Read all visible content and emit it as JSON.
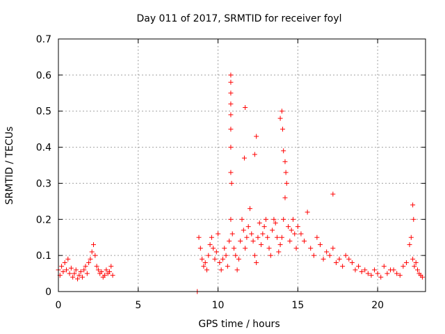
{
  "chart_data": {
    "type": "scatter",
    "title": "Day 011 of 2017, SRMTID for receiver foyl",
    "xlabel": "GPS time / hours",
    "ylabel": "SRMTID / TECUs",
    "xlim": [
      0,
      23
    ],
    "ylim": [
      0,
      0.7
    ],
    "xticks": [
      0,
      5,
      10,
      15,
      20
    ],
    "xtick_labels": [
      "0",
      "5",
      "10",
      "15",
      "20"
    ],
    "yticks": [
      0,
      0.1,
      0.2,
      0.3,
      0.4,
      0.5,
      0.6,
      0.7
    ],
    "ytick_labels": [
      "0",
      "0.1",
      "0.2",
      "0.3",
      "0.4",
      "0.5",
      "0.6",
      "0.7"
    ],
    "grid": true,
    "marker": "+",
    "marker_color": "#ff0000",
    "series": [
      {
        "name": "SRMTID",
        "x": [
          0.0,
          0.1,
          0.2,
          0.3,
          0.4,
          0.5,
          0.6,
          0.7,
          0.8,
          0.9,
          1.0,
          1.1,
          1.2,
          1.3,
          1.4,
          1.5,
          1.6,
          1.7,
          1.8,
          1.9,
          2.0,
          2.1,
          2.2,
          2.3,
          2.4,
          2.5,
          2.6,
          2.7,
          2.8,
          2.9,
          3.0,
          3.1,
          3.2,
          3.3,
          3.4,
          8.7,
          8.8,
          8.9,
          9.0,
          9.1,
          9.2,
          9.3,
          9.4,
          9.5,
          9.6,
          9.7,
          9.8,
          9.9,
          10.0,
          10.1,
          10.2,
          10.3,
          10.4,
          10.5,
          10.6,
          10.7,
          10.8,
          10.85,
          10.9,
          11.0,
          11.1,
          11.2,
          11.3,
          11.4,
          11.5,
          11.6,
          11.7,
          11.8,
          11.9,
          12.0,
          12.1,
          12.2,
          12.3,
          12.4,
          12.5,
          12.6,
          12.7,
          12.8,
          12.9,
          13.0,
          13.1,
          13.2,
          13.3,
          13.4,
          13.5,
          13.6,
          13.7,
          13.8,
          13.9,
          14.0,
          14.1,
          14.2,
          14.3,
          14.4,
          14.5,
          14.6,
          14.7,
          14.8,
          14.9,
          15.0,
          15.2,
          15.4,
          15.6,
          15.8,
          16.0,
          16.2,
          16.4,
          16.6,
          16.8,
          17.0,
          17.2,
          17.4,
          17.6,
          17.8,
          18.0,
          18.2,
          18.4,
          18.6,
          18.8,
          19.0,
          19.2,
          19.4,
          19.6,
          19.8,
          20.0,
          20.2,
          20.4,
          20.6,
          20.8,
          21.0,
          21.2,
          21.4,
          21.6,
          21.8,
          22.0,
          22.1,
          22.2,
          22.3,
          22.4,
          22.5,
          22.6,
          22.7,
          22.8,
          10.8,
          10.8,
          10.8,
          10.8,
          10.8,
          10.8,
          10.8,
          10.8,
          11.7,
          11.65,
          12.4,
          12.3,
          14.0,
          13.9,
          14.05,
          14.1,
          14.2,
          14.25,
          22.2,
          22.25,
          17.2
        ],
        "y": [
          0.06,
          0.045,
          0.07,
          0.055,
          0.08,
          0.06,
          0.09,
          0.05,
          0.065,
          0.04,
          0.05,
          0.06,
          0.035,
          0.045,
          0.055,
          0.04,
          0.06,
          0.07,
          0.05,
          0.08,
          0.09,
          0.11,
          0.13,
          0.1,
          0.07,
          0.06,
          0.05,
          0.055,
          0.04,
          0.045,
          0.06,
          0.05,
          0.055,
          0.07,
          0.045,
          0.0,
          0.15,
          0.12,
          0.09,
          0.07,
          0.08,
          0.06,
          0.1,
          0.13,
          0.15,
          0.12,
          0.09,
          0.11,
          0.16,
          0.08,
          0.06,
          0.09,
          0.12,
          0.1,
          0.07,
          0.14,
          0.2,
          0.3,
          0.16,
          0.12,
          0.1,
          0.06,
          0.09,
          0.14,
          0.2,
          0.17,
          0.12,
          0.15,
          0.18,
          0.23,
          0.16,
          0.14,
          0.1,
          0.08,
          0.15,
          0.19,
          0.13,
          0.16,
          0.18,
          0.2,
          0.15,
          0.12,
          0.1,
          0.17,
          0.2,
          0.19,
          0.15,
          0.11,
          0.13,
          0.15,
          0.2,
          0.26,
          0.3,
          0.18,
          0.14,
          0.17,
          0.2,
          0.16,
          0.12,
          0.18,
          0.16,
          0.14,
          0.22,
          0.12,
          0.1,
          0.15,
          0.13,
          0.09,
          0.11,
          0.1,
          0.12,
          0.08,
          0.09,
          0.07,
          0.1,
          0.09,
          0.08,
          0.06,
          0.07,
          0.055,
          0.06,
          0.05,
          0.045,
          0.06,
          0.05,
          0.04,
          0.07,
          0.05,
          0.06,
          0.06,
          0.05,
          0.045,
          0.07,
          0.08,
          0.13,
          0.15,
          0.09,
          0.07,
          0.08,
          0.06,
          0.05,
          0.045,
          0.04,
          0.6,
          0.58,
          0.55,
          0.52,
          0.49,
          0.45,
          0.4,
          0.33,
          0.51,
          0.37,
          0.43,
          0.38,
          0.5,
          0.48,
          0.45,
          0.39,
          0.36,
          0.33,
          0.24,
          0.2,
          0.27
        ]
      }
    ]
  }
}
